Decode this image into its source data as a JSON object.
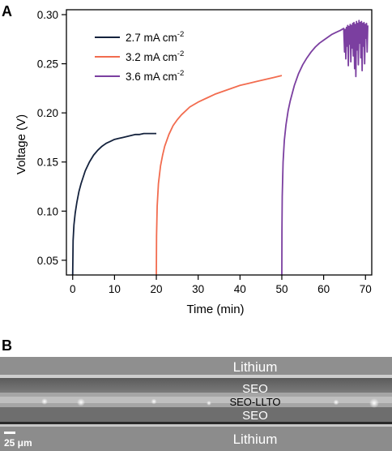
{
  "panels": {
    "a_letter": "A",
    "b_letter": "B"
  },
  "chart_data": {
    "type": "line",
    "title": "",
    "xlabel": "Time (min)",
    "ylabel": "Voltage (V)",
    "xlim": [
      -1.5,
      71.5
    ],
    "ylim": [
      0.035,
      0.305
    ],
    "xticks": [
      0,
      10,
      20,
      30,
      40,
      50,
      60,
      70
    ],
    "yticks": [
      0.05,
      0.1,
      0.15,
      0.2,
      0.25,
      0.3
    ],
    "ytick_labels": [
      "0.05",
      "0.10",
      "0.15",
      "0.20",
      "0.25",
      "0.30"
    ],
    "grid": false,
    "legend_position": "top-left",
    "series": [
      {
        "name": "2.7 mA cm",
        "superscript": "-2",
        "color": "#14223d",
        "x": [
          0,
          0.1,
          0.3,
          0.6,
          1,
          1.5,
          2,
          3,
          4,
          5,
          6,
          7,
          8,
          9,
          10,
          11,
          12,
          13,
          14,
          15,
          16,
          17,
          18,
          19,
          20
        ],
        "y": [
          0.035,
          0.07,
          0.086,
          0.098,
          0.109,
          0.12,
          0.128,
          0.141,
          0.15,
          0.157,
          0.162,
          0.166,
          0.169,
          0.171,
          0.173,
          0.174,
          0.175,
          0.176,
          0.177,
          0.178,
          0.178,
          0.179,
          0.179,
          0.179,
          0.179
        ]
      },
      {
        "name": "3.2 mA cm",
        "superscript": "-2",
        "color": "#f26c4f",
        "x": [
          20,
          20.05,
          20.2,
          20.5,
          21,
          21.5,
          22,
          23,
          24,
          25,
          26,
          28,
          30,
          32,
          34,
          36,
          38,
          40,
          42,
          44,
          46,
          48,
          50
        ],
        "y": [
          0.035,
          0.075,
          0.105,
          0.128,
          0.146,
          0.157,
          0.166,
          0.178,
          0.187,
          0.193,
          0.198,
          0.206,
          0.211,
          0.215,
          0.219,
          0.222,
          0.225,
          0.228,
          0.23,
          0.232,
          0.234,
          0.236,
          0.238
        ]
      },
      {
        "name": "3.6 mA cm",
        "superscript": "-2",
        "color": "#7b3fa0",
        "x": [
          50,
          50.03,
          50.1,
          50.3,
          50.6,
          51,
          51.5,
          52,
          53,
          54,
          55,
          56,
          57,
          58,
          59,
          60,
          61,
          62,
          63,
          64,
          64.8,
          65.0,
          65.15,
          65.3,
          65.45,
          65.6,
          65.75,
          65.9,
          66.05,
          66.2,
          66.35,
          66.5,
          66.65,
          66.8,
          66.95,
          67.1,
          67.25,
          67.4,
          67.55,
          67.7,
          67.85,
          68.0,
          68.15,
          68.3,
          68.45,
          68.6,
          68.75,
          68.9,
          69.05,
          69.2,
          69.35,
          69.5,
          69.65,
          69.8,
          69.95,
          70.1,
          70.25,
          70.4,
          70.55
        ],
        "y": [
          0.035,
          0.08,
          0.115,
          0.15,
          0.172,
          0.188,
          0.202,
          0.212,
          0.228,
          0.24,
          0.249,
          0.256,
          0.262,
          0.267,
          0.271,
          0.274,
          0.277,
          0.28,
          0.282,
          0.284,
          0.286,
          0.262,
          0.285,
          0.255,
          0.287,
          0.268,
          0.289,
          0.248,
          0.288,
          0.27,
          0.29,
          0.252,
          0.289,
          0.266,
          0.291,
          0.258,
          0.292,
          0.245,
          0.29,
          0.237,
          0.293,
          0.264,
          0.291,
          0.249,
          0.294,
          0.271,
          0.292,
          0.256,
          0.293,
          0.243,
          0.291,
          0.268,
          0.292,
          0.25,
          0.29,
          0.276,
          0.291,
          0.262,
          0.289
        ]
      }
    ]
  },
  "micrograph": {
    "labels": {
      "lithium_top": "Lithium",
      "seo_top": "SEO",
      "seo_llto": "SEO-LLTO",
      "seo_bottom": "SEO",
      "lithium_bottom": "Lithium"
    },
    "scale_bar_label": "25 μm"
  }
}
